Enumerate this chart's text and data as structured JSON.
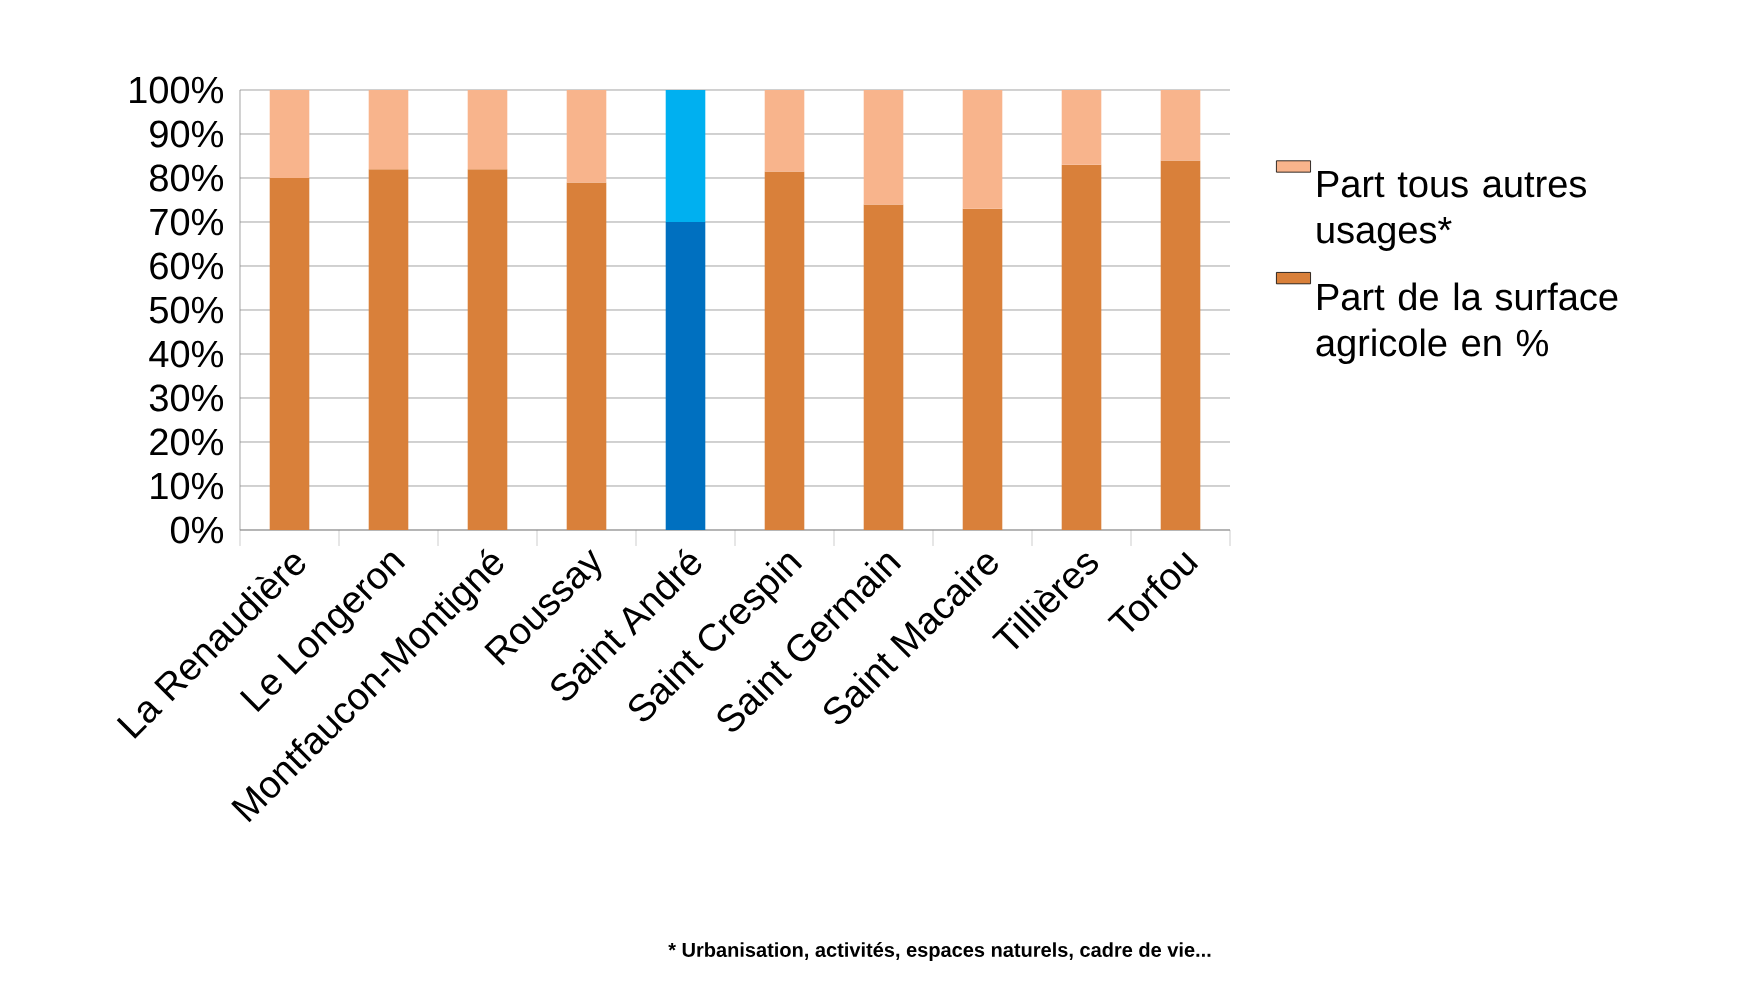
{
  "chart_data": {
    "type": "bar",
    "stacked": true,
    "categories": [
      "La Renaudière",
      "Le Longeron",
      "Montfaucon-Montigné",
      "Roussay",
      "Saint André",
      "Saint Crespin",
      "Saint Germain",
      "Saint Macaire",
      "Tillières",
      "Torfou"
    ],
    "series": [
      {
        "name": "Part de la surface agricole en %",
        "color": "#d9803a",
        "colors": [
          "#d9803a",
          "#d9803a",
          "#d9803a",
          "#d9803a",
          "#0070c0",
          "#d9803a",
          "#d9803a",
          "#d9803a",
          "#d9803a",
          "#d9803a"
        ],
        "values": [
          80,
          82,
          82,
          79,
          70,
          81.5,
          74,
          73,
          83,
          84
        ]
      },
      {
        "name": "Part tous autres usages*",
        "color": "#f8b48c",
        "colors": [
          "#f8b48c",
          "#f8b48c",
          "#f8b48c",
          "#f8b48c",
          "#00b0f0",
          "#f8b48c",
          "#f8b48c",
          "#f8b48c",
          "#f8b48c",
          "#f8b48c"
        ],
        "values": [
          20,
          18,
          18,
          21,
          30,
          18.5,
          26,
          27,
          17,
          16
        ]
      }
    ],
    "ylim": [
      0,
      100
    ],
    "yticks": [
      {
        "value": 0,
        "label": "0%"
      },
      {
        "value": 10,
        "label": "10%"
      },
      {
        "value": 20,
        "label": "20%"
      },
      {
        "value": 30,
        "label": "30%"
      },
      {
        "value": 40,
        "label": "40%"
      },
      {
        "value": 50,
        "label": "50%"
      },
      {
        "value": 60,
        "label": "60%"
      },
      {
        "value": 70,
        "label": "70%"
      },
      {
        "value": 80,
        "label": "80%"
      },
      {
        "value": 90,
        "label": "90%"
      },
      {
        "value": 100,
        "label": "100%"
      }
    ],
    "grid": "y",
    "legend": "right",
    "annotations": [
      "* Urbanisation, activités, espaces naturels, cadre de vie..."
    ]
  }
}
